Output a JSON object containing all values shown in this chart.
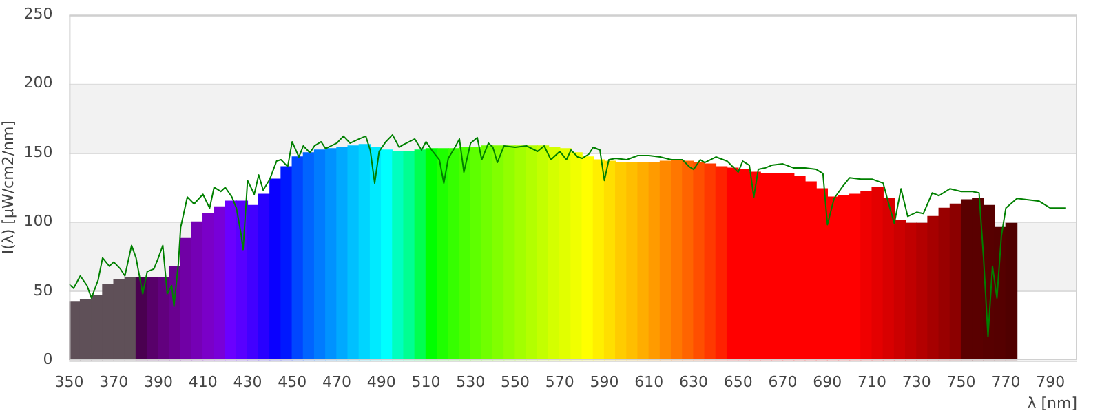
{
  "chart_data": {
    "type": "histogram",
    "xlabel": "λ [nm]",
    "ylabel": "I(λ) [µW/cm2/nm]",
    "grid": "y",
    "legend": false,
    "bins": [
      350,
      355,
      360,
      365,
      370,
      375,
      380,
      385,
      390,
      395,
      400,
      405,
      410,
      415,
      420,
      425,
      430,
      435,
      440,
      445,
      450,
      455,
      460,
      465,
      470,
      475,
      480,
      485,
      490,
      495,
      500,
      505,
      510,
      515,
      520,
      525,
      530,
      535,
      540,
      545,
      550,
      555,
      560,
      565,
      570,
      575,
      580,
      585,
      590,
      595,
      600,
      605,
      610,
      615,
      620,
      625,
      630,
      635,
      640,
      645,
      650,
      655,
      660,
      665,
      670,
      675,
      680,
      685,
      690,
      695,
      700,
      705,
      710,
      715,
      720,
      725,
      730,
      735,
      740,
      745,
      750,
      755,
      760,
      765,
      770,
      775
    ],
    "values": [
      42,
      44,
      47,
      55,
      58,
      60,
      60,
      60,
      60,
      68,
      88,
      100,
      106,
      111,
      115,
      115,
      112,
      120,
      131,
      140,
      147,
      150,
      152,
      153,
      154,
      155,
      156,
      154,
      152,
      151,
      151,
      152,
      153,
      153,
      153,
      154,
      154,
      155,
      155,
      155,
      155,
      155,
      155,
      154,
      153,
      150,
      147,
      145,
      144,
      143,
      143,
      143,
      143,
      144,
      145,
      144,
      143,
      142,
      140,
      139,
      138,
      136,
      135,
      135,
      135,
      133,
      129,
      124,
      118,
      119,
      120,
      122,
      125,
      117,
      101,
      99,
      99,
      104,
      110,
      113,
      116,
      117,
      112,
      96,
      99
    ],
    "colors": [
      "#5f5058",
      "#5f5058",
      "#5f5058",
      "#5f5058",
      "#5f5058",
      "#5f5058",
      "#4a0050",
      "#58006a",
      "#62007e",
      "#6a0090",
      "#7000a5",
      "#7500b5",
      "#7a00c8",
      "#7800d8",
      "#6a00ff",
      "#5800ff",
      "#4200ff",
      "#2800ff",
      "#0a00ff",
      "#0018ff",
      "#0046ff",
      "#0064ff",
      "#007bff",
      "#0092ff",
      "#00a9ff",
      "#00c0ff",
      "#00d5ff",
      "#00eaff",
      "#00ffff",
      "#00ffbf",
      "#00ff92",
      "#00ff50",
      "#00ff00",
      "#1fff00",
      "#36ff00",
      "#4aff00",
      "#5eff00",
      "#70ff00",
      "#81ff00",
      "#92ff00",
      "#a3ff00",
      "#b3ff00",
      "#c3ff00",
      "#d4ff00",
      "#e1ff00",
      "#f0ff00",
      "#ffff00",
      "#ffef00",
      "#ffdf00",
      "#ffcc00",
      "#ffbe00",
      "#ffad00",
      "#ff9b00",
      "#ff8900",
      "#ff7700",
      "#ff6400",
      "#ff4f00",
      "#ff3900",
      "#ff2100",
      "#ff0000",
      "#ff0000",
      "#ff0000",
      "#ff0000",
      "#ff0000",
      "#ff0000",
      "#ff0000",
      "#ff0000",
      "#ff0000",
      "#ff0000",
      "#ff0000",
      "#ff0000",
      "#f00000",
      "#e40000",
      "#d80000",
      "#cc0000",
      "#c00000",
      "#b30000",
      "#a60000",
      "#990000",
      "#8c0000",
      "#5a0000",
      "#5a0000",
      "#570000",
      "#550000",
      "#500000"
    ],
    "series": [
      {
        "type": "line",
        "color": "#008000",
        "x": [
          350,
          352,
          355,
          358,
          360,
          363,
          365,
          368,
          370,
          373,
          375,
          378,
          380,
          383,
          385,
          388,
          390,
          392,
          394,
          396,
          397,
          399,
          400,
          403,
          406,
          410,
          413,
          415,
          418,
          420,
          423,
          425,
          427,
          428,
          430,
          433,
          435,
          437,
          440,
          443,
          445,
          448,
          450,
          453,
          455,
          458,
          460,
          463,
          465,
          470,
          473,
          476,
          480,
          483,
          485,
          487,
          489,
          492,
          495,
          498,
          500,
          505,
          508,
          510,
          513,
          516,
          518,
          520,
          523,
          525,
          527,
          530,
          533,
          535,
          538,
          540,
          542,
          545,
          550,
          555,
          560,
          563,
          566,
          570,
          573,
          575,
          578,
          580,
          583,
          585,
          588,
          590,
          592,
          595,
          600,
          605,
          610,
          615,
          620,
          625,
          628,
          630,
          633,
          635,
          640,
          645,
          650,
          652,
          655,
          657,
          659,
          662,
          665,
          670,
          675,
          680,
          685,
          688,
          690,
          693,
          697,
          700,
          705,
          710,
          715,
          718,
          720,
          723,
          726,
          730,
          733,
          737,
          740,
          745,
          750,
          755,
          758,
          760,
          762,
          764,
          766,
          768,
          770,
          775,
          780,
          785,
          790,
          795,
          797
        ],
        "values": [
          55,
          52,
          61,
          54,
          45,
          58,
          74,
          68,
          71,
          66,
          61,
          83,
          74,
          48,
          64,
          66,
          74,
          83,
          48,
          54,
          39,
          70,
          96,
          118,
          113,
          120,
          110,
          125,
          122,
          125,
          118,
          110,
          92,
          80,
          130,
          120,
          134,
          123,
          131,
          144,
          145,
          140,
          158,
          147,
          155,
          150,
          155,
          158,
          153,
          157,
          162,
          157,
          160,
          162,
          152,
          128,
          151,
          158,
          163,
          154,
          156,
          160,
          152,
          158,
          151,
          145,
          128,
          146,
          154,
          160,
          136,
          157,
          161,
          145,
          157,
          154,
          143,
          155,
          154,
          155,
          151,
          155,
          145,
          151,
          145,
          152,
          147,
          146,
          149,
          154,
          152,
          130,
          145,
          146,
          145,
          148,
          148,
          147,
          145,
          145,
          140,
          138,
          145,
          143,
          147,
          144,
          136,
          144,
          141,
          118,
          138,
          139,
          141,
          142,
          139,
          139,
          138,
          135,
          98,
          117,
          126,
          132,
          131,
          131,
          128,
          110,
          99,
          124,
          104,
          107,
          106,
          121,
          119,
          124,
          122,
          122,
          121,
          74,
          17,
          68,
          45,
          90,
          110,
          117,
          116,
          115,
          110,
          110,
          110
        ]
      }
    ],
    "xlim": [
      350,
      802
    ],
    "xticks": [
      350,
      370,
      390,
      410,
      430,
      450,
      470,
      490,
      510,
      530,
      550,
      570,
      590,
      610,
      630,
      650,
      670,
      690,
      710,
      730,
      750,
      770,
      790
    ],
    "ylim": [
      0,
      250
    ],
    "yticks": [
      0,
      50,
      100,
      150,
      200,
      250
    ]
  }
}
